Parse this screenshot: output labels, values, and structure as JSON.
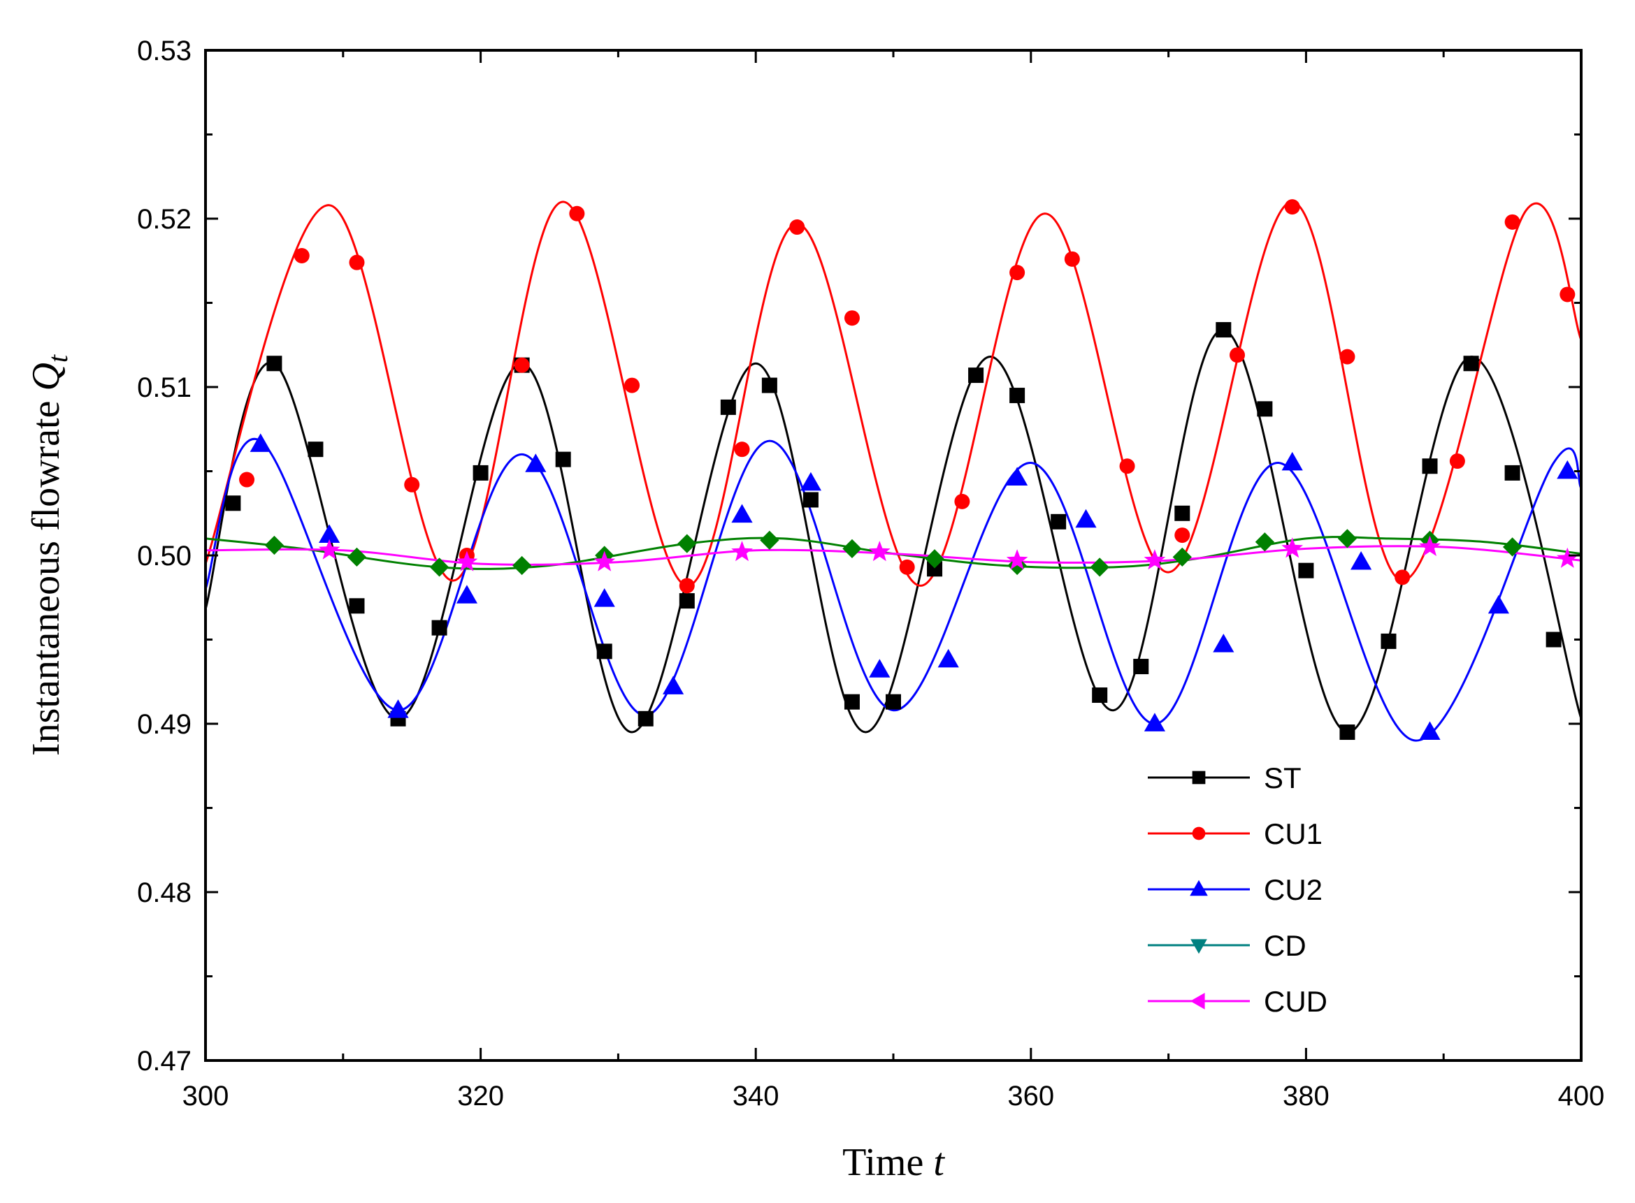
{
  "chart_data": {
    "type": "line",
    "xlabel": "Time",
    "xlabel_var": "t",
    "ylabel": "Instantaneous  flowrate",
    "ylabel_var": "Q",
    "ylabel_sub": "t",
    "xlim": [
      300,
      400
    ],
    "ylim": [
      0.47,
      0.53
    ],
    "xticks": [
      300,
      320,
      340,
      360,
      380,
      400
    ],
    "yticks": [
      0.47,
      0.48,
      0.49,
      0.5,
      0.51,
      0.52,
      0.53
    ],
    "ytick_labels": [
      "0.47",
      "0.48",
      "0.49",
      "0.50",
      "0.51",
      "0.52",
      "0.53"
    ],
    "legend_position": "lower-right",
    "series": [
      {
        "name": "ST",
        "color": "#000000",
        "marker": "square",
        "line": {
          "x": [
            300,
            305,
            314,
            323,
            331,
            340,
            348,
            357,
            366,
            374,
            383,
            392,
            400
          ],
          "y": [
            0.4968,
            0.5114,
            0.4903,
            0.5114,
            0.4895,
            0.5114,
            0.4895,
            0.5118,
            0.4908,
            0.5134,
            0.4895,
            0.5118,
            0.4903
          ]
        },
        "markers": {
          "x": [
            302,
            305,
            308,
            311,
            314,
            317,
            320,
            323,
            326,
            329,
            332,
            335,
            338,
            341,
            344,
            347,
            350,
            353,
            356,
            359,
            362,
            365,
            368,
            371,
            374,
            377,
            380,
            383,
            386,
            389,
            392,
            395,
            398
          ],
          "y": [
            0.5031,
            0.5114,
            0.5063,
            0.497,
            0.4903,
            0.4957,
            0.5049,
            0.5113,
            0.5057,
            0.4943,
            0.4903,
            0.4973,
            0.5088,
            0.5101,
            0.5033,
            0.4913,
            0.4913,
            0.4992,
            0.5107,
            0.5095,
            0.502,
            0.4917,
            0.4934,
            0.5025,
            0.5134,
            0.5087,
            0.4991,
            0.4895,
            0.4949,
            0.5053,
            0.5114,
            0.5049,
            0.495
          ]
        }
      },
      {
        "name": "CU1",
        "color": "#ff0000",
        "marker": "circle",
        "line": {
          "x": [
            300,
            309,
            318,
            326,
            335,
            343,
            352,
            361,
            370,
            379,
            387,
            396,
            400
          ],
          "y": [
            0.4995,
            0.5208,
            0.4985,
            0.521,
            0.4982,
            0.5197,
            0.4982,
            0.5203,
            0.499,
            0.521,
            0.4985,
            0.5205,
            0.5128
          ]
        },
        "markers": {
          "x": [
            303,
            307,
            311,
            315,
            319,
            323,
            327,
            331,
            335,
            339,
            343,
            347,
            351,
            355,
            359,
            363,
            367,
            371,
            375,
            379,
            383,
            387,
            391,
            395,
            399
          ],
          "y": [
            0.5045,
            0.5178,
            0.5174,
            0.5042,
            0.5,
            0.5113,
            0.5203,
            0.5101,
            0.4982,
            0.5063,
            0.5195,
            0.5141,
            0.4993,
            0.5032,
            0.5168,
            0.5176,
            0.5053,
            0.5012,
            0.5119,
            0.5207,
            0.5118,
            0.4987,
            0.5056,
            0.5198,
            0.5155
          ]
        }
      },
      {
        "name": "CU2",
        "color": "#0000ff",
        "marker": "triangle-up",
        "line": {
          "x": [
            300,
            304,
            314,
            323,
            332,
            341,
            350,
            360,
            369,
            378,
            388,
            398,
            400
          ],
          "y": [
            0.498,
            0.5068,
            0.4908,
            0.506,
            0.4905,
            0.5068,
            0.4908,
            0.5055,
            0.49,
            0.5055,
            0.489,
            0.5055,
            0.504
          ]
        },
        "markers": {
          "x": [
            304,
            309,
            314,
            319,
            324,
            329,
            334,
            339,
            344,
            349,
            354,
            359,
            364,
            369,
            374,
            379,
            384,
            389,
            394,
            399
          ],
          "y": [
            0.5066,
            0.5012,
            0.4908,
            0.4976,
            0.5054,
            0.4974,
            0.4922,
            0.5024,
            0.5043,
            0.4932,
            0.4938,
            0.5046,
            0.5021,
            0.49,
            0.4947,
            0.5055,
            0.4996,
            0.4895,
            0.497,
            0.505
          ]
        }
      },
      {
        "name": "CD",
        "color": "#008000",
        "marker": "diamond",
        "legend_marker": "triangle-down",
        "legend_color": "#008080",
        "line": {
          "x": [
            300,
            307,
            317,
            325,
            335,
            342,
            350,
            358,
            366,
            372,
            380,
            386,
            393,
            400
          ],
          "y": [
            0.501,
            0.5004,
            0.4993,
            0.4994,
            0.5007,
            0.501,
            0.5001,
            0.4994,
            0.4993,
            0.4998,
            0.501,
            0.501,
            0.5008,
            0.5001
          ]
        },
        "markers": {
          "x": [
            305,
            311,
            317,
            323,
            329,
            335,
            341,
            347,
            353,
            359,
            365,
            371,
            377,
            383,
            389,
            395
          ],
          "y": [
            0.5006,
            0.4999,
            0.4993,
            0.4994,
            0.5,
            0.5007,
            0.5009,
            0.5004,
            0.4998,
            0.4994,
            0.4993,
            0.4999,
            0.5008,
            0.501,
            0.5009,
            0.5005
          ]
        }
      },
      {
        "name": "CUD",
        "color": "#ff00ff",
        "marker": "star",
        "legend_marker": "triangle-left",
        "line": {
          "x": [
            300,
            310,
            320,
            330,
            340,
            350,
            360,
            370,
            380,
            390,
            400
          ],
          "y": [
            0.5003,
            0.5003,
            0.4995,
            0.4996,
            0.5003,
            0.5001,
            0.4996,
            0.4997,
            0.5004,
            0.5005,
            0.4997
          ]
        },
        "markers": {
          "x": [
            309,
            319,
            329,
            339,
            349,
            359,
            369,
            379,
            389,
            399
          ],
          "y": [
            0.5003,
            0.4996,
            0.4996,
            0.5002,
            0.5002,
            0.4997,
            0.4997,
            0.5004,
            0.5005,
            0.4998
          ]
        }
      }
    ]
  }
}
